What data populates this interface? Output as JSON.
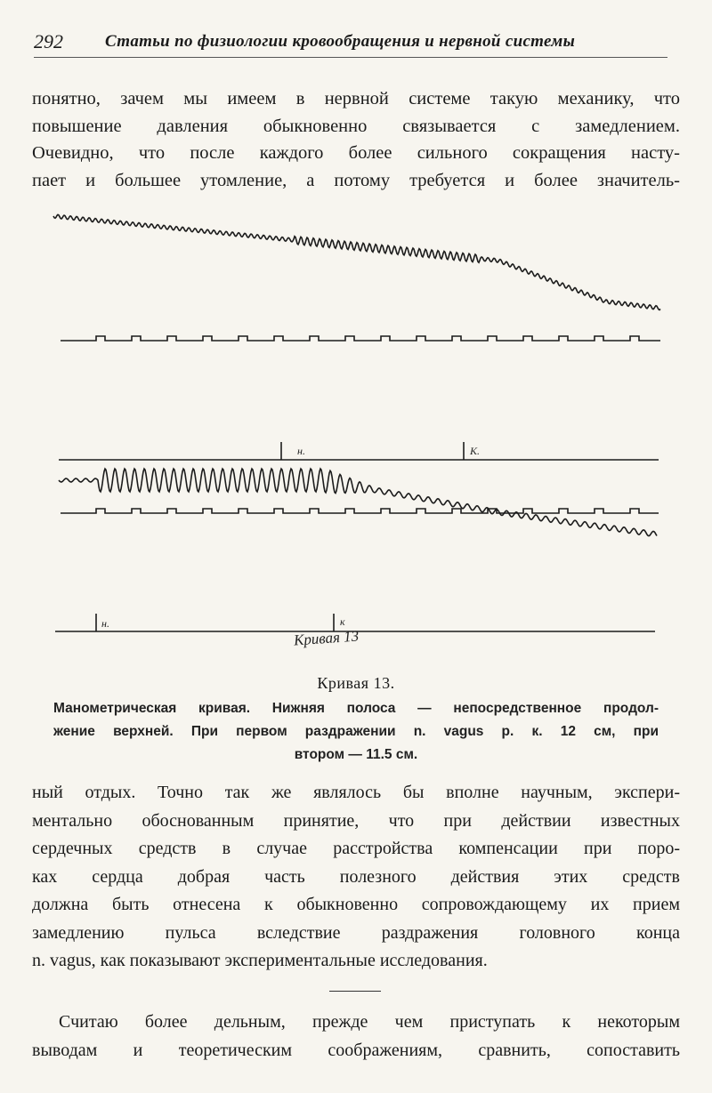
{
  "header": {
    "page_number": "292",
    "running_title": "Статьи по физиологии кровообращения и нервной системы"
  },
  "top_paragraph": {
    "lines": [
      "понятно, зачем мы имеем в нервной системе такую механику, что",
      "повышение давления обыкновенно связывается с замедлением.",
      "Очевидно, что после каждого более сильного сокращения насту-",
      "пает и большее утомление, а потому требуется и более значитель-"
    ]
  },
  "figure": {
    "marks": {
      "start_1": "н.",
      "end_1": "К.",
      "start_2": "н.",
      "end_2": "к"
    },
    "handwritten_label": "Кривая 13",
    "title": "Кривая 13.",
    "caption_lines": [
      "Манометрическая кривая. Нижняя полоса — непосредственное продол-",
      "жение верхней. При первом раздражении n. vagus р. к. 12 см, при",
      "втором — 11.5 см."
    ]
  },
  "middle_paragraph": {
    "lines": [
      "ный отдых. Точно так же являлось бы вполне научным, экспери-",
      "ментально обоснованным принятие, что при действии известных",
      "сердечных средств в случае расстройства компенсации при поро-",
      "ках сердца добрая часть полезного действия этих средств",
      "должна быть отнесена к обыкновенно сопровождающему их прием",
      "замедлению пульса вследствие раздражения головного конца",
      "n. vagus, как показывают экспериментальные исследования."
    ]
  },
  "bottom_paragraph": {
    "lines": [
      "Считаю более дельным, прежде чем приступать к некоторым",
      "выводам и теоретическим соображениям, сравнить, сопоставить"
    ]
  }
}
